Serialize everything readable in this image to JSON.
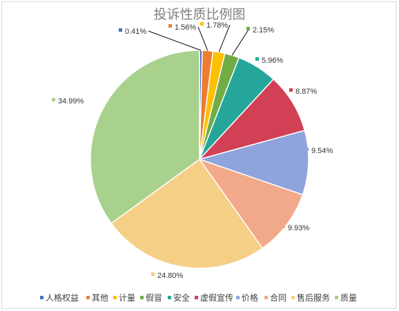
{
  "chart_data": {
    "type": "pie",
    "title": "投诉性质比例图",
    "slices": [
      {
        "name": "人格权益",
        "value": 0.41,
        "label": "0.41%",
        "color": "#4472c4"
      },
      {
        "name": "其他",
        "value": 1.56,
        "label": "1.56%",
        "color": "#ed7d31"
      },
      {
        "name": "计量",
        "value": 1.78,
        "label": "1.78%",
        "color": "#ffc000"
      },
      {
        "name": "假冒",
        "value": 2.15,
        "label": "2.15%",
        "color": "#70ad47"
      },
      {
        "name": "安全",
        "value": 5.96,
        "label": "5.96%",
        "color": "#26a69a"
      },
      {
        "name": "虚假宣传",
        "value": 8.87,
        "label": "8.87%",
        "color": "#d14054"
      },
      {
        "name": "价格",
        "value": 9.54,
        "label": "9.54%",
        "color": "#8fa3dc"
      },
      {
        "name": "合同",
        "value": 9.93,
        "label": "9.93%",
        "color": "#f2a98a"
      },
      {
        "name": "售后服务",
        "value": 24.8,
        "label": "24.80%",
        "color": "#f6cf86"
      },
      {
        "name": "质量",
        "value": 34.99,
        "label": "34.99%",
        "color": "#a9d18e"
      }
    ],
    "legend_position": "bottom"
  }
}
